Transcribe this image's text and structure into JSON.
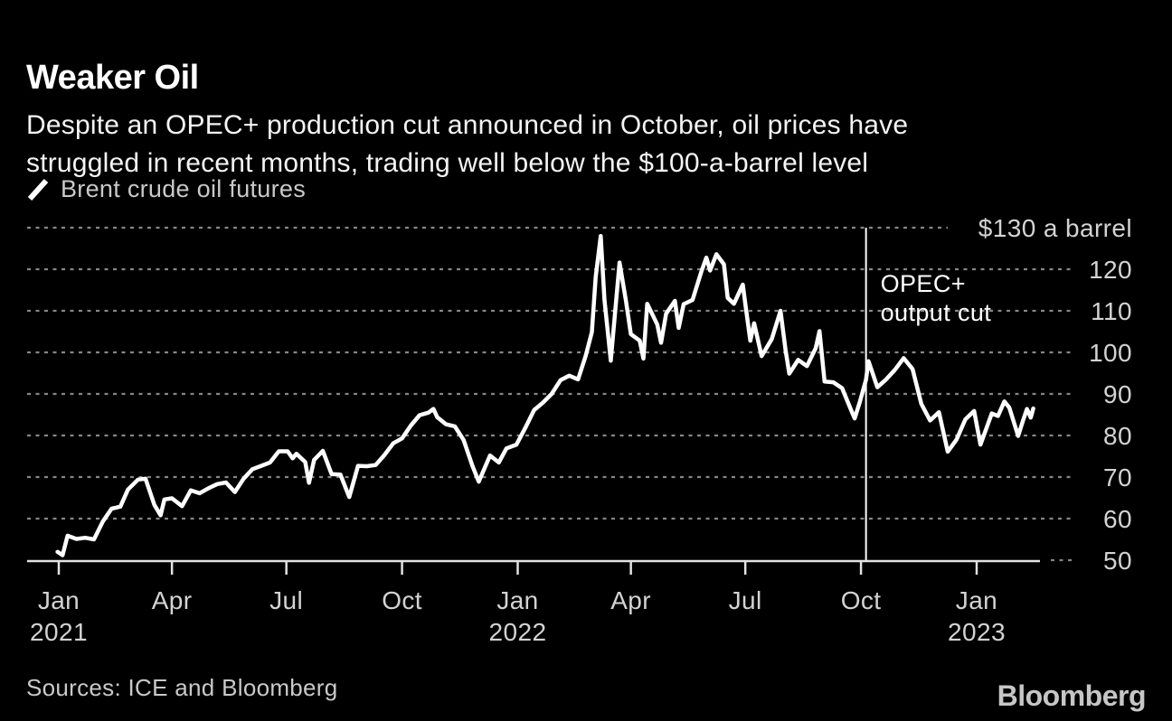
{
  "header": {
    "title": "Weaker Oil",
    "subtitle_lines": [
      "Despite an OPEC+ production cut announced in October, oil prices have",
      "struggled in recent months, trading well below the $100-a-barrel level"
    ]
  },
  "legend": {
    "label": "Brent crude oil futures"
  },
  "footer": {
    "sources": "Sources: ICE and Bloomberg",
    "brand": "Bloomberg"
  },
  "colors": {
    "background": "#000000",
    "line": "#ffffff",
    "grid": "#868686",
    "axis": "#e2e2e2",
    "tick_label": "#d3d3d3",
    "annotation_text": "#ffffff",
    "legend_text": "#c9c9c9",
    "brand_gray": "#c6c6c6"
  },
  "chart_data": {
    "type": "line",
    "title": "Weaker Oil",
    "series_name": "Brent crude oil futures",
    "unit": "$ a barrel",
    "ylim": [
      50,
      130
    ],
    "grid": "dotted-horizontal",
    "legend_position": "top-left",
    "y_ticks": [
      50,
      60,
      70,
      80,
      90,
      100,
      110,
      120
    ],
    "y_top_tick": {
      "value": 130,
      "label": "$130 a barrel"
    },
    "x_ticks": [
      {
        "date": "2021-01-01",
        "month": "Jan",
        "year": "2021"
      },
      {
        "date": "2021-04-01",
        "month": "Apr"
      },
      {
        "date": "2021-07-01",
        "month": "Jul"
      },
      {
        "date": "2021-10-01",
        "month": "Oct"
      },
      {
        "date": "2022-01-01",
        "month": "Jan",
        "year": "2022"
      },
      {
        "date": "2022-04-01",
        "month": "Apr"
      },
      {
        "date": "2022-07-01",
        "month": "Jul"
      },
      {
        "date": "2022-10-01",
        "month": "Oct"
      },
      {
        "date": "2023-01-01",
        "month": "Jan",
        "year": "2023"
      }
    ],
    "annotation": {
      "date": "2022-10-05",
      "lines": [
        "OPEC+",
        "output cut"
      ]
    },
    "points": [
      [
        "2020-12-31",
        52.0
      ],
      [
        "2021-01-04",
        51.2
      ],
      [
        "2021-01-08",
        55.9
      ],
      [
        "2021-01-15",
        55.1
      ],
      [
        "2021-01-22",
        55.4
      ],
      [
        "2021-01-29",
        55.0
      ],
      [
        "2021-02-05",
        59.3
      ],
      [
        "2021-02-12",
        62.4
      ],
      [
        "2021-02-19",
        62.9
      ],
      [
        "2021-02-25",
        67.0
      ],
      [
        "2021-03-05",
        69.4
      ],
      [
        "2021-03-11",
        69.6
      ],
      [
        "2021-03-18",
        63.3
      ],
      [
        "2021-03-23",
        60.8
      ],
      [
        "2021-03-26",
        64.6
      ],
      [
        "2021-04-01",
        64.9
      ],
      [
        "2021-04-09",
        63.0
      ],
      [
        "2021-04-16",
        66.8
      ],
      [
        "2021-04-23",
        66.1
      ],
      [
        "2021-04-30",
        67.3
      ],
      [
        "2021-05-07",
        68.3
      ],
      [
        "2021-05-14",
        68.7
      ],
      [
        "2021-05-21",
        66.4
      ],
      [
        "2021-05-28",
        69.6
      ],
      [
        "2021-06-04",
        71.9
      ],
      [
        "2021-06-11",
        72.7
      ],
      [
        "2021-06-18",
        73.5
      ],
      [
        "2021-06-25",
        76.2
      ],
      [
        "2021-07-02",
        76.2
      ],
      [
        "2021-07-06",
        74.5
      ],
      [
        "2021-07-09",
        75.6
      ],
      [
        "2021-07-16",
        73.6
      ],
      [
        "2021-07-19",
        68.6
      ],
      [
        "2021-07-23",
        74.1
      ],
      [
        "2021-07-30",
        76.3
      ],
      [
        "2021-08-06",
        70.7
      ],
      [
        "2021-08-13",
        70.6
      ],
      [
        "2021-08-20",
        65.2
      ],
      [
        "2021-08-27",
        72.7
      ],
      [
        "2021-09-03",
        72.6
      ],
      [
        "2021-09-10",
        72.9
      ],
      [
        "2021-09-17",
        75.3
      ],
      [
        "2021-09-24",
        78.1
      ],
      [
        "2021-10-01",
        79.3
      ],
      [
        "2021-10-08",
        82.4
      ],
      [
        "2021-10-15",
        84.9
      ],
      [
        "2021-10-22",
        85.5
      ],
      [
        "2021-10-26",
        86.4
      ],
      [
        "2021-10-29",
        84.4
      ],
      [
        "2021-11-05",
        82.7
      ],
      [
        "2021-11-12",
        82.2
      ],
      [
        "2021-11-19",
        78.9
      ],
      [
        "2021-11-26",
        72.7
      ],
      [
        "2021-12-01",
        68.9
      ],
      [
        "2021-12-10",
        75.2
      ],
      [
        "2021-12-17",
        73.5
      ],
      [
        "2021-12-23",
        76.9
      ],
      [
        "2021-12-31",
        77.8
      ],
      [
        "2022-01-07",
        81.8
      ],
      [
        "2022-01-14",
        86.1
      ],
      [
        "2022-01-21",
        87.9
      ],
      [
        "2022-01-28",
        90.0
      ],
      [
        "2022-02-04",
        93.3
      ],
      [
        "2022-02-11",
        94.4
      ],
      [
        "2022-02-18",
        93.5
      ],
      [
        "2022-02-24",
        99.1
      ],
      [
        "2022-03-01",
        104.9
      ],
      [
        "2022-03-04",
        118.1
      ],
      [
        "2022-03-08",
        128.0
      ],
      [
        "2022-03-11",
        112.7
      ],
      [
        "2022-03-16",
        98.0
      ],
      [
        "2022-03-23",
        121.6
      ],
      [
        "2022-03-28",
        112.5
      ],
      [
        "2022-04-01",
        104.4
      ],
      [
        "2022-04-08",
        102.8
      ],
      [
        "2022-04-11",
        98.5
      ],
      [
        "2022-04-14",
        111.7
      ],
      [
        "2022-04-22",
        106.7
      ],
      [
        "2022-04-25",
        102.3
      ],
      [
        "2022-04-29",
        109.3
      ],
      [
        "2022-05-06",
        112.4
      ],
      [
        "2022-05-09",
        105.9
      ],
      [
        "2022-05-13",
        111.6
      ],
      [
        "2022-05-20",
        112.6
      ],
      [
        "2022-05-27",
        119.4
      ],
      [
        "2022-05-31",
        122.8
      ],
      [
        "2022-06-03",
        119.7
      ],
      [
        "2022-06-08",
        123.6
      ],
      [
        "2022-06-14",
        121.2
      ],
      [
        "2022-06-17",
        113.1
      ],
      [
        "2022-06-22",
        111.7
      ],
      [
        "2022-06-29",
        116.3
      ],
      [
        "2022-07-01",
        111.6
      ],
      [
        "2022-07-05",
        102.8
      ],
      [
        "2022-07-08",
        107.0
      ],
      [
        "2022-07-14",
        99.1
      ],
      [
        "2022-07-22",
        103.2
      ],
      [
        "2022-07-29",
        110.0
      ],
      [
        "2022-08-02",
        100.5
      ],
      [
        "2022-08-05",
        94.9
      ],
      [
        "2022-08-12",
        98.2
      ],
      [
        "2022-08-19",
        96.7
      ],
      [
        "2022-08-26",
        101.0
      ],
      [
        "2022-08-29",
        105.1
      ],
      [
        "2022-09-02",
        93.0
      ],
      [
        "2022-09-09",
        92.8
      ],
      [
        "2022-09-16",
        91.4
      ],
      [
        "2022-09-23",
        86.2
      ],
      [
        "2022-09-26",
        84.1
      ],
      [
        "2022-09-30",
        88.0
      ],
      [
        "2022-10-05",
        93.4
      ],
      [
        "2022-10-07",
        97.9
      ],
      [
        "2022-10-14",
        91.6
      ],
      [
        "2022-10-21",
        93.5
      ],
      [
        "2022-10-28",
        95.8
      ],
      [
        "2022-11-04",
        98.6
      ],
      [
        "2022-11-11",
        96.0
      ],
      [
        "2022-11-18",
        87.6
      ],
      [
        "2022-11-25",
        83.6
      ],
      [
        "2022-12-02",
        85.6
      ],
      [
        "2022-12-09",
        76.1
      ],
      [
        "2022-12-16",
        79.0
      ],
      [
        "2022-12-23",
        83.9
      ],
      [
        "2022-12-30",
        85.9
      ],
      [
        "2023-01-04",
        77.8
      ],
      [
        "2023-01-13",
        85.3
      ],
      [
        "2023-01-18",
        84.7
      ],
      [
        "2023-01-23",
        88.2
      ],
      [
        "2023-01-27",
        86.7
      ],
      [
        "2023-02-03",
        79.9
      ],
      [
        "2023-02-07",
        83.7
      ],
      [
        "2023-02-10",
        86.4
      ],
      [
        "2023-02-13",
        84.3
      ],
      [
        "2023-02-15",
        86.5
      ]
    ]
  }
}
